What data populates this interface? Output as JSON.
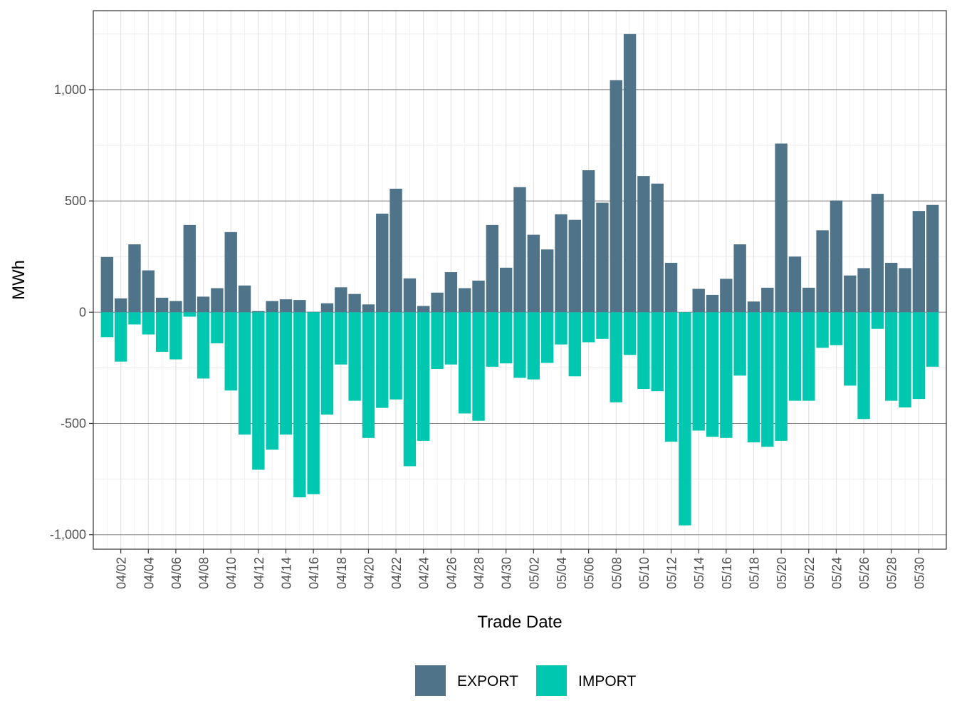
{
  "chart_data": {
    "type": "bar",
    "stacked": true,
    "title": "",
    "xlabel": "Trade Date",
    "ylabel": "MWh",
    "ylim": [
      -1065,
      1355
    ],
    "yticks": [
      -1000,
      -500,
      0,
      500,
      1000
    ],
    "ytick_labels": [
      "-1,000",
      "-500",
      "0",
      "500",
      "1,000"
    ],
    "grid": true,
    "legend_position": "bottom",
    "categories": [
      "04/01",
      "04/02",
      "04/03",
      "04/04",
      "04/05",
      "04/06",
      "04/07",
      "04/08",
      "04/09",
      "04/10",
      "04/11",
      "04/12",
      "04/13",
      "04/14",
      "04/15",
      "04/16",
      "04/17",
      "04/18",
      "04/19",
      "04/20",
      "04/21",
      "04/22",
      "04/23",
      "04/24",
      "04/25",
      "04/26",
      "04/27",
      "04/28",
      "04/29",
      "04/30",
      "05/01",
      "05/02",
      "05/03",
      "05/04",
      "05/05",
      "05/06",
      "05/07",
      "05/08",
      "05/09",
      "05/10",
      "05/11",
      "05/12",
      "05/13",
      "05/14",
      "05/15",
      "05/16",
      "05/17",
      "05/18",
      "05/19",
      "05/20",
      "05/21",
      "05/22",
      "05/23",
      "05/24",
      "05/25",
      "05/26",
      "05/27",
      "05/28",
      "05/29",
      "05/30",
      "05/31"
    ],
    "xtick_labels": [
      "04/02",
      "04/04",
      "04/06",
      "04/08",
      "04/10",
      "04/12",
      "04/14",
      "04/16",
      "04/18",
      "04/20",
      "04/22",
      "04/24",
      "04/26",
      "04/28",
      "04/30",
      "05/02",
      "05/04",
      "05/06",
      "05/08",
      "05/10",
      "05/12",
      "05/14",
      "05/16",
      "05/18",
      "05/20",
      "05/22",
      "05/24",
      "05/26",
      "05/28",
      "05/30"
    ],
    "series": [
      {
        "name": "EXPORT",
        "color": "#4f7489",
        "values": [
          248,
          62,
          305,
          188,
          65,
          50,
          392,
          70,
          108,
          360,
          120,
          5,
          50,
          58,
          55,
          2,
          40,
          112,
          82,
          35,
          443,
          555,
          152,
          28,
          88,
          180,
          108,
          142,
          392,
          200,
          562,
          348,
          282,
          440,
          415,
          638,
          492,
          1043,
          1250,
          612,
          578,
          222,
          0,
          105,
          78,
          150,
          305,
          48,
          110,
          758,
          250,
          110,
          368,
          502,
          165,
          198,
          532,
          222,
          198,
          455,
          482
        ]
      },
      {
        "name": "IMPORT",
        "color": "#00c7b0",
        "values": [
          -112,
          -222,
          -55,
          -100,
          -178,
          -212,
          -20,
          -298,
          -140,
          -352,
          -550,
          -708,
          -618,
          -550,
          -832,
          -818,
          -460,
          -235,
          -398,
          -565,
          -430,
          -392,
          -692,
          -578,
          -255,
          -235,
          -455,
          -488,
          -245,
          -230,
          -295,
          -302,
          -228,
          -145,
          -288,
          -135,
          -120,
          -405,
          -192,
          -345,
          -355,
          -582,
          -958,
          -532,
          -560,
          -565,
          -285,
          -585,
          -605,
          -578,
          -398,
          -398,
          -160,
          -148,
          -330,
          -480,
          -75,
          -398,
          -428,
          -390,
          -245
        ]
      }
    ]
  }
}
